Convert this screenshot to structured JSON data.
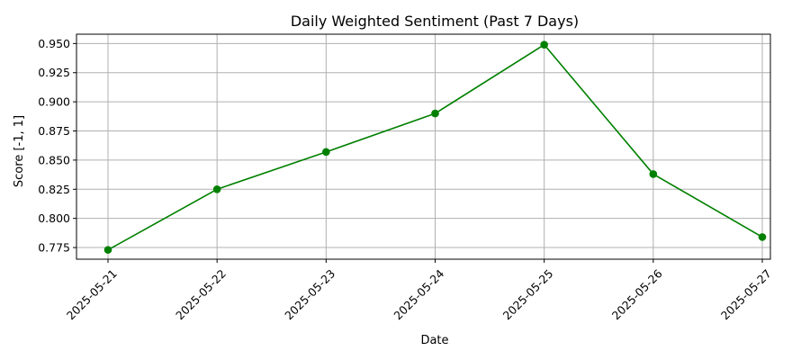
{
  "chart_data": {
    "type": "line",
    "title": "Daily Weighted Sentiment (Past 7 Days)",
    "xlabel": "Date",
    "ylabel": "Score [-1, 1]",
    "x": [
      "2025-05-21",
      "2025-05-22",
      "2025-05-23",
      "2025-05-24",
      "2025-05-25",
      "2025-05-26",
      "2025-05-27"
    ],
    "series": [
      {
        "values": [
          0.773,
          0.825,
          0.857,
          0.89,
          0.949,
          0.838,
          0.784
        ]
      }
    ],
    "y_ticks": [
      "0.775",
      "0.800",
      "0.825",
      "0.850",
      "0.875",
      "0.900",
      "0.925",
      "0.950"
    ],
    "ylim": [
      0.765,
      0.958
    ],
    "grid": true,
    "x_tick_rotation": "45 degrees",
    "line_color": "#008000",
    "marker": "circle"
  }
}
